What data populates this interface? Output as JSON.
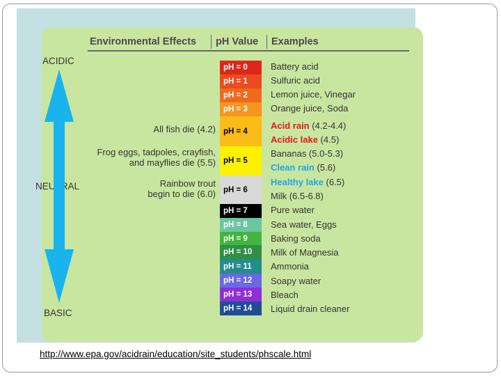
{
  "headers": {
    "effects": "Environmental Effects",
    "ph_value": "pH Value",
    "examples": "Examples"
  },
  "side_labels": {
    "acidic": "ACIDIC",
    "neutral": "NEUTRAL",
    "basic": "BASIC"
  },
  "colors": {
    "panel_outer": "#c4dfe1",
    "panel_inner": "#c8e6a0",
    "arrow": "#19b3ee",
    "highlight_red": "#e8161c",
    "highlight_blue": "#1fa6e6"
  },
  "effects": [
    {
      "text": "All fish die (4.2)"
    },
    {
      "text": "Frog eggs, tadpoles, crayfish,\nand mayflies die (5.5)"
    },
    {
      "text": "Rainbow trout\nbegin to die (6.0)"
    }
  ],
  "ph_scale": [
    {
      "label": "pH = 0",
      "value": 0,
      "bg": "#e0261b",
      "fg": "#ffffff"
    },
    {
      "label": "pH = 1",
      "value": 1,
      "bg": "#ec4a1f",
      "fg": "#ffffff"
    },
    {
      "label": "pH = 2",
      "value": 2,
      "bg": "#f2691d",
      "fg": "#ffffff"
    },
    {
      "label": "pH = 3",
      "value": 3,
      "bg": "#f6961f",
      "fg": "#ffffff"
    },
    {
      "label": "pH = 4",
      "value": 4,
      "bg": "#fcbc17",
      "fg": "#000000"
    },
    {
      "label": "pH = 5",
      "value": 5,
      "bg": "#fdf100",
      "fg": "#000000"
    },
    {
      "label": "pH = 6",
      "value": 6,
      "bg": "#d9d9d9",
      "fg": "#000000"
    },
    {
      "label": "pH = 7",
      "value": 7,
      "bg": "#000000",
      "fg": "#ffffff"
    },
    {
      "label": "pH = 8",
      "value": 8,
      "bg": "#6cc6a0",
      "fg": "#ffffff"
    },
    {
      "label": "pH = 9",
      "value": 9,
      "bg": "#43b53f",
      "fg": "#ffffff"
    },
    {
      "label": "pH = 10",
      "value": 10,
      "bg": "#2e8f45",
      "fg": "#ffffff"
    },
    {
      "label": "pH = 11",
      "value": 11,
      "bg": "#258c8c",
      "fg": "#ffffff"
    },
    {
      "label": "pH = 12",
      "value": 12,
      "bg": "#6a68e6",
      "fg": "#ffffff"
    },
    {
      "label": "pH = 13",
      "value": 13,
      "bg": "#8e2fd8",
      "fg": "#ffffff"
    },
    {
      "label": "pH = 14",
      "value": 14,
      "bg": "#1f4d96",
      "fg": "#ffffff"
    }
  ],
  "examples": [
    {
      "parts": [
        {
          "text": "Battery acid"
        }
      ]
    },
    {
      "parts": [
        {
          "text": "Sulfuric acid"
        }
      ]
    },
    {
      "parts": [
        {
          "text": "Lemon juice, Vinegar"
        }
      ]
    },
    {
      "parts": [
        {
          "text": "Orange juice, Soda"
        }
      ]
    },
    {
      "parts": [
        {
          "text": "Acid rain",
          "color": "#e8161c",
          "bold": true
        },
        {
          "text": " (4.2-4.4)"
        }
      ]
    },
    {
      "parts": [
        {
          "text": "Acidic lake",
          "color": "#e8161c",
          "bold": true
        },
        {
          "text": " (4.5)"
        }
      ]
    },
    {
      "parts": [
        {
          "text": "Bananas (5.0-5.3)"
        }
      ]
    },
    {
      "parts": [
        {
          "text": "Clean rain",
          "color": "#1fa6e6",
          "bold": true
        },
        {
          "text": " (5.6)"
        }
      ]
    },
    {
      "parts": [
        {
          "text": "Healthy lake",
          "color": "#1fa6e6",
          "bold": true
        },
        {
          "text": " (6.5)"
        }
      ]
    },
    {
      "parts": [
        {
          "text": "Milk (6.5-6.8)"
        }
      ]
    },
    {
      "parts": [
        {
          "text": "Pure water"
        }
      ]
    },
    {
      "parts": [
        {
          "text": "Sea water, Eggs"
        }
      ]
    },
    {
      "parts": [
        {
          "text": "Baking soda"
        }
      ]
    },
    {
      "parts": [
        {
          "text": "Milk of Magnesia"
        }
      ]
    },
    {
      "parts": [
        {
          "text": "Ammonia"
        }
      ]
    },
    {
      "parts": [
        {
          "text": "Soapy water"
        }
      ]
    },
    {
      "parts": [
        {
          "text": "Bleach"
        }
      ]
    },
    {
      "parts": [
        {
          "text": "Liquid drain cleaner"
        }
      ]
    }
  ],
  "source_url": "http://www.epa.gov/acidrain/education/site_students/phscale.html"
}
